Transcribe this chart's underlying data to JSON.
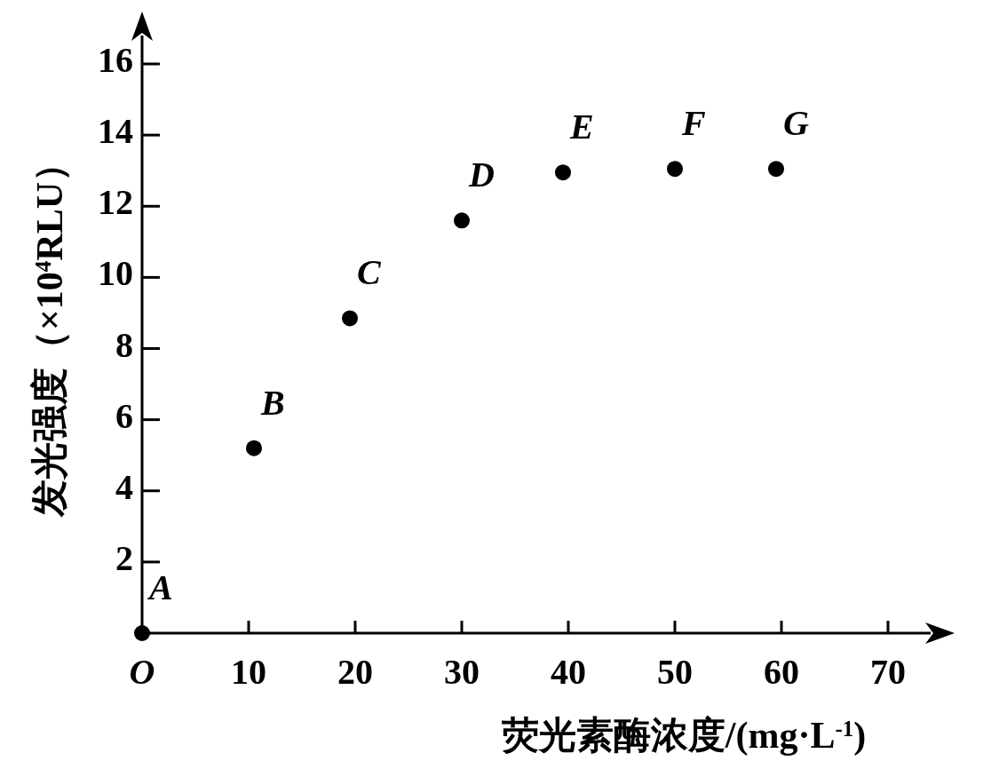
{
  "chart_data": {
    "type": "scatter",
    "xlabel": "荧光素酶浓度/(mg·L$^{-1}$)",
    "ylabel": "发光强度（×10$^{4}$RLU）",
    "x": [
      0,
      10.5,
      19.5,
      30,
      39.5,
      50,
      59.5
    ],
    "values": [
      0,
      5.2,
      8.85,
      11.6,
      12.95,
      13.05,
      13.05
    ],
    "color": "#000000",
    "marker": "circle",
    "xlim": [
      0,
      74
    ],
    "ylim": [
      0,
      16.8
    ],
    "xticks": [
      {
        "value": 0,
        "label": "O"
      },
      10,
      20,
      30,
      40,
      50,
      60,
      70
    ],
    "yticks": [
      2,
      4,
      6,
      8,
      10,
      12,
      14,
      16
    ],
    "annotations": [
      {
        "text": "A",
        "x": 0,
        "y": 0
      },
      {
        "text": "B",
        "x": 10.5,
        "y": 5.2
      },
      {
        "text": "C",
        "x": 19.5,
        "y": 8.85
      },
      {
        "text": "D",
        "x": 30,
        "y": 11.6
      },
      {
        "text": "E",
        "x": 39.5,
        "y": 12.95
      },
      {
        "text": "F",
        "x": 50,
        "y": 13.05
      },
      {
        "text": "G",
        "x": 59.5,
        "y": 13.05
      }
    ]
  }
}
